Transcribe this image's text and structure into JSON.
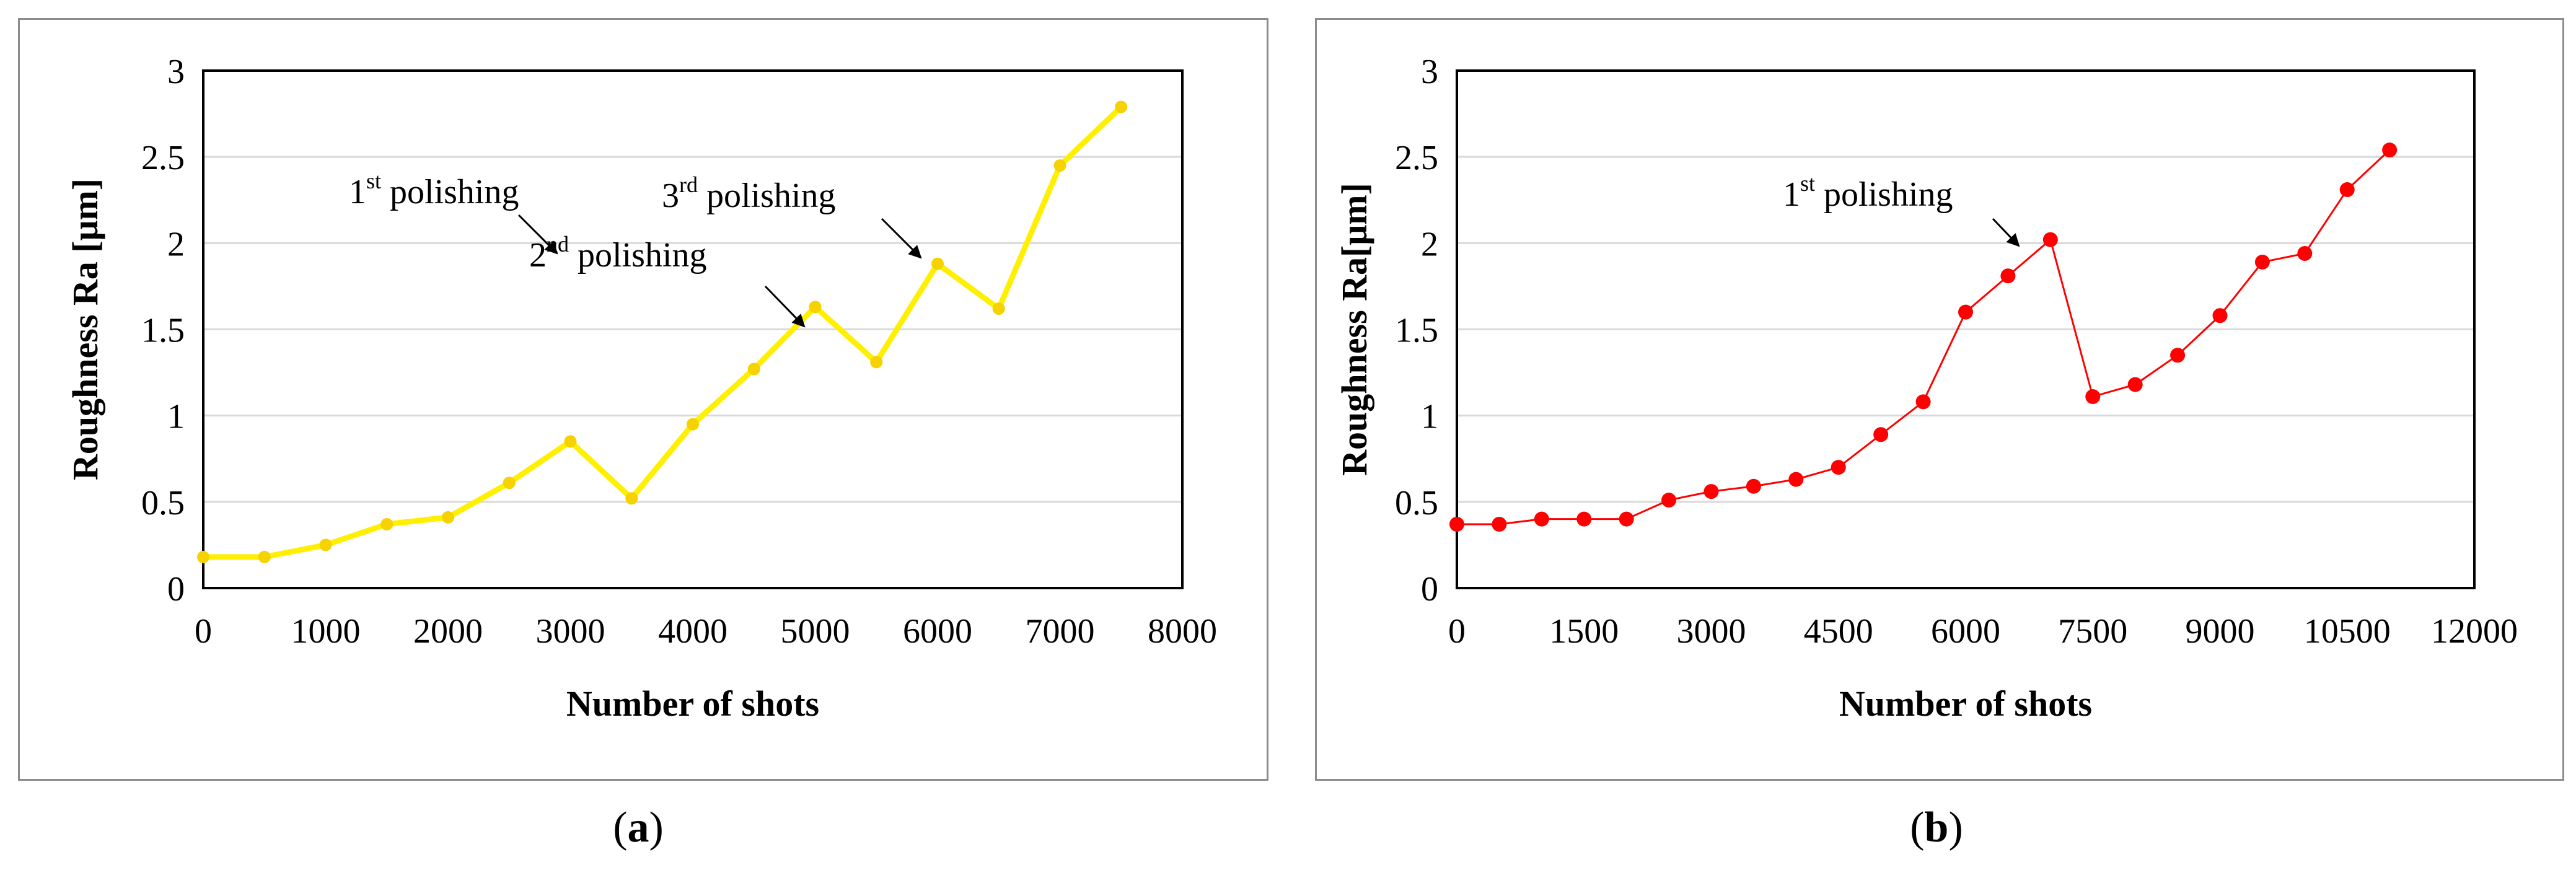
{
  "chart_data": [
    {
      "type": "line",
      "panel": "a",
      "xlabel": "Number of shots",
      "ylabel": "Roughness Ra [μm]",
      "xlim": [
        0,
        8000
      ],
      "ylim": [
        0,
        3
      ],
      "xticks": [
        0,
        1000,
        2000,
        3000,
        4000,
        5000,
        6000,
        7000,
        8000
      ],
      "yticks": [
        0,
        0.5,
        1,
        1.5,
        2,
        2.5,
        3
      ],
      "grid": "horizontal",
      "color": "#FFEF00",
      "marker_color": "#F5D200",
      "series": [
        {
          "name": "Roughness Ra",
          "x": [
            0,
            500,
            1000,
            1500,
            2000,
            2500,
            3000,
            3500,
            4000,
            4500,
            5000,
            5500,
            6000,
            6500,
            7000,
            7500
          ],
          "y": [
            0.18,
            0.18,
            0.25,
            0.37,
            0.41,
            0.61,
            0.85,
            0.52,
            0.95,
            1.27,
            1.63,
            1.31,
            1.88,
            1.62,
            2.45,
            2.79
          ]
        }
      ],
      "annotations": [
        {
          "base": "1",
          "sup": "st",
          "text": " polishing",
          "x": 3000,
          "y": 0.85
        },
        {
          "base": "2",
          "sup": "nd",
          "text": " polishing",
          "x": 5000,
          "y": 1.63
        },
        {
          "base": "3",
          "sup": "rd",
          "text": " polishing",
          "x": 6000,
          "y": 1.88
        }
      ],
      "caption_letter": "a"
    },
    {
      "type": "line",
      "panel": "b",
      "xlabel": "Number of shots",
      "ylabel": "Roughness Ra[μm]",
      "xlim": [
        0,
        12000
      ],
      "ylim": [
        0,
        3
      ],
      "xticks": [
        0,
        1500,
        3000,
        4500,
        6000,
        7500,
        9000,
        10500,
        12000
      ],
      "yticks": [
        0,
        0.5,
        1,
        1.5,
        2,
        2.5,
        3
      ],
      "grid": "horizontal",
      "color": "#FF0000",
      "marker_color": "#FF0000",
      "series": [
        {
          "name": "Roughness Ra",
          "x": [
            0,
            500,
            1000,
            1500,
            2000,
            2500,
            3000,
            3500,
            4000,
            4500,
            5000,
            5500,
            6000,
            6500,
            7000,
            7500,
            8000,
            8500,
            9000,
            9500,
            10000,
            10500,
            11000
          ],
          "y": [
            0.37,
            0.37,
            0.4,
            0.4,
            0.4,
            0.51,
            0.56,
            0.59,
            0.63,
            0.7,
            0.89,
            1.08,
            1.6,
            1.81,
            2.02,
            1.11,
            1.18,
            1.35,
            1.58,
            1.89,
            1.94,
            2.31,
            2.54
          ]
        }
      ],
      "annotations": [
        {
          "base": "1",
          "sup": "st",
          "text": " polishing",
          "x": 7000,
          "y": 2.02
        }
      ],
      "caption_letter": "b"
    }
  ],
  "captions": {
    "a_open": "(",
    "a_letter": "a",
    "a_close": ")",
    "b_open": "(",
    "b_letter": "b",
    "b_close": ")"
  }
}
